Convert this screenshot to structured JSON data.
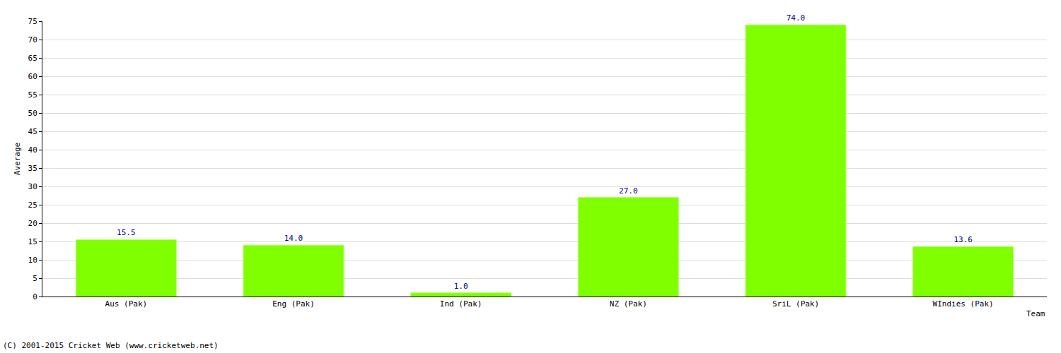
{
  "chart_data": {
    "type": "bar",
    "categories": [
      "Aus (Pak)",
      "Eng (Pak)",
      "Ind (Pak)",
      "NZ (Pak)",
      "SriL (Pak)",
      "WIndies (Pak)"
    ],
    "values": [
      15.5,
      14.0,
      1.0,
      27.0,
      74.0,
      13.6
    ],
    "value_labels": [
      "15.5",
      "14.0",
      "1.0",
      "27.0",
      "74.0",
      "13.6"
    ],
    "data_labels": true,
    "color": "#7fff00",
    "x_label": "Team",
    "y_label": "Average",
    "ylim": [
      0,
      75
    ],
    "yticks": [
      0,
      5,
      10,
      15,
      20,
      25,
      30,
      35,
      40,
      45,
      50,
      55,
      60,
      65,
      70,
      75
    ],
    "grid": true,
    "annotations": [
      "(C) 2001-2015 Cricket Web (www.cricketweb.net)"
    ]
  }
}
